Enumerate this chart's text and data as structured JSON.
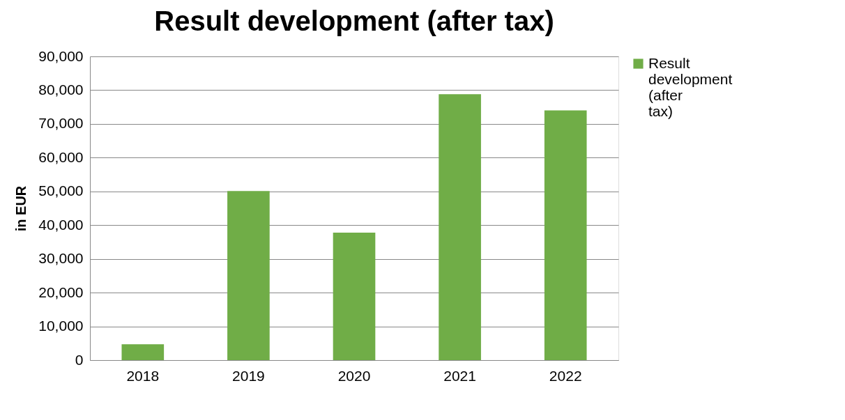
{
  "chart_data": {
    "type": "bar",
    "title": "Result development (after tax)",
    "ylabel": "in EUR",
    "categories": [
      "2018",
      "2019",
      "2020",
      "2021",
      "2022"
    ],
    "series": [
      {
        "name": "Result development (after tax)",
        "color": "#70ad47",
        "values": [
          4700,
          50100,
          37800,
          78800,
          74000
        ]
      }
    ],
    "ylim": [
      0,
      90000
    ],
    "yticks": [
      {
        "value": 0,
        "label": "0"
      },
      {
        "value": 10000,
        "label": "10,000"
      },
      {
        "value": 20000,
        "label": "20,000"
      },
      {
        "value": 30000,
        "label": "30,000"
      },
      {
        "value": 40000,
        "label": "40,000"
      },
      {
        "value": 50000,
        "label": "50,000"
      },
      {
        "value": 60000,
        "label": "60,000"
      },
      {
        "value": 70000,
        "label": "70,000"
      },
      {
        "value": 80000,
        "label": "80,000"
      },
      {
        "value": 90000,
        "label": "90,000"
      }
    ],
    "grid": "y",
    "legend": "right"
  }
}
